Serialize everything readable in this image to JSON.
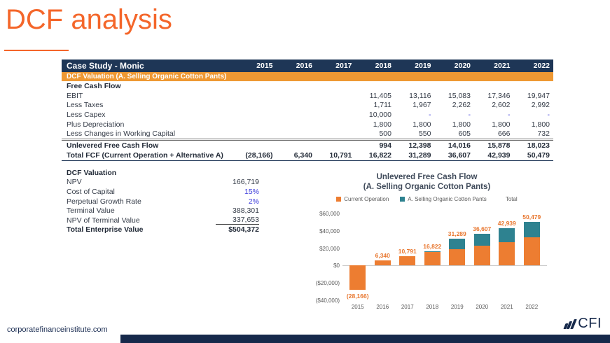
{
  "slide": {
    "title": "DCF analysis"
  },
  "table": {
    "header": {
      "label": "Case Study - Monic",
      "years": [
        "2015",
        "2016",
        "2017",
        "2018",
        "2019",
        "2020",
        "2021",
        "2022"
      ]
    },
    "band_label": "DCF Valuation (A. Selling Organic Cotton Pants)",
    "rows": [
      {
        "label": "Free Cash Flow",
        "bold": true,
        "values": [
          "",
          "",
          "",
          "",
          "",
          "",
          "",
          ""
        ]
      },
      {
        "label": "EBIT",
        "bold": false,
        "values": [
          "",
          "",
          "",
          "11,405",
          "13,116",
          "15,083",
          "17,346",
          "19,947"
        ]
      },
      {
        "label": "Less Taxes",
        "bold": false,
        "values": [
          "",
          "",
          "",
          "1,711",
          "1,967",
          "2,262",
          "2,602",
          "2,992"
        ]
      },
      {
        "label": "Less Capex",
        "bold": false,
        "values": [
          "",
          "",
          "",
          "10,000",
          "-",
          "-",
          "-",
          "-"
        ]
      },
      {
        "label": "Plus Depreciation",
        "bold": false,
        "values": [
          "",
          "",
          "",
          "1,800",
          "1,800",
          "1,800",
          "1,800",
          "1,800"
        ]
      },
      {
        "label": "Less Changes in Working Capital",
        "bold": false,
        "values": [
          "",
          "",
          "",
          "500",
          "550",
          "605",
          "666",
          "732"
        ]
      },
      {
        "label": "Unlevered Free Cash Flow",
        "bold": true,
        "dblTop": true,
        "values": [
          "",
          "",
          "",
          "994",
          "12,398",
          "14,016",
          "15,878",
          "18,023"
        ]
      },
      {
        "label": "Total FCF (Current Operation + Alternative A)",
        "bold": true,
        "navyBottom": true,
        "values": [
          "(28,166)",
          "6,340",
          "10,791",
          "16,822",
          "31,289",
          "36,607",
          "42,939",
          "50,479"
        ]
      }
    ]
  },
  "valuation": {
    "title": "DCF Valuation",
    "rows": [
      {
        "label": "NPV",
        "value": "166,719",
        "style": "normal"
      },
      {
        "label": "Cost of Capital",
        "value": "15%",
        "style": "input"
      },
      {
        "label": "Perpetual Growth Rate",
        "value": "2%",
        "style": "input"
      },
      {
        "label": "Terminal Value",
        "value": "388,301",
        "style": "normal"
      },
      {
        "label": "NPV of Terminal Value",
        "value": "337,653",
        "style": "underline"
      },
      {
        "label": "Total Enterprise Value",
        "value": "$504,372",
        "style": "total"
      }
    ]
  },
  "chart_data": {
    "type": "bar",
    "stacked": true,
    "title": "Unlevered Free Cash Flow",
    "subtitle": "(A. Selling Organic Cotton Pants)",
    "categories": [
      "2015",
      "2016",
      "2017",
      "2018",
      "2019",
      "2020",
      "2021",
      "2022"
    ],
    "series": [
      {
        "name": "Current Operation",
        "color": "#ED7D31",
        "values": [
          -28166,
          6340,
          10791,
          15828,
          18891,
          22591,
          27061,
          32456
        ]
      },
      {
        "name": "A. Selling Organic Cotton Pants",
        "color": "#2E8290",
        "values": [
          0,
          0,
          0,
          994,
          12398,
          14016,
          15878,
          18023
        ]
      }
    ],
    "totals": [
      -28166,
      6340,
      10791,
      16822,
      31289,
      36607,
      42939,
      50479
    ],
    "total_labels": [
      "(28,166)",
      "6,340",
      "10,791",
      "16,822",
      "31,289",
      "36,607",
      "42,939",
      "50,479"
    ],
    "legend": [
      {
        "label": "Current Operation",
        "color": "#ED7D31"
      },
      {
        "label": "A. Selling Organic Cotton Pants",
        "color": "#2E8290"
      },
      {
        "label": "Total",
        "color": "transparent"
      }
    ],
    "ylim": [
      -40000,
      60000
    ],
    "ytick_step": 20000,
    "ytick_labels": [
      "$60,000",
      "$40,000",
      "$20,000",
      "$0",
      "($20,000)",
      "($40,000)"
    ],
    "legend_position": "top",
    "grid": false,
    "label_color": "#E8762E"
  },
  "footer": {
    "url": "corporatefinanceinstitute.com",
    "logo_text": "CFI"
  },
  "colors": {
    "accent_orange": "#F4662A",
    "band_orange": "#EE9833",
    "navy": "#1E3656",
    "teal": "#2E8290",
    "input_blue": "#3D3DDB"
  }
}
